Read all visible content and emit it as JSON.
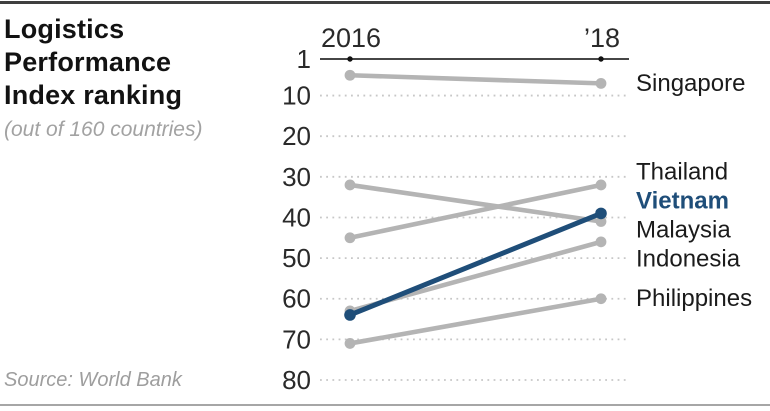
{
  "header": {
    "title_lines": [
      "Logistics",
      "Performance",
      "Index ranking"
    ],
    "subtitle": "(out of 160 countries)"
  },
  "footer": {
    "source": "Source: World Bank"
  },
  "chart_data": {
    "type": "line",
    "subtype": "slope-chart",
    "title": "Logistics Performance Index ranking",
    "subtitle": "(out of 160 countries)",
    "source": "Source: World Bank",
    "x_categories": [
      "2016",
      "’18"
    ],
    "ylabel": "rank (out of 160 countries)",
    "yticks": [
      1,
      10,
      20,
      30,
      40,
      50,
      60,
      70,
      80
    ],
    "ylim": [
      1,
      80
    ],
    "y_inverted": true,
    "grid": "dotted-horizontal",
    "legend_position": "right-inline-labels",
    "series": [
      {
        "name": "Singapore",
        "values": [
          5,
          7
        ],
        "highlight": false
      },
      {
        "name": "Thailand",
        "values": [
          45,
          32
        ],
        "highlight": false
      },
      {
        "name": "Vietnam",
        "values": [
          64,
          39
        ],
        "highlight": true
      },
      {
        "name": "Malaysia",
        "values": [
          32,
          41
        ],
        "highlight": false
      },
      {
        "name": "Indonesia",
        "values": [
          63,
          46
        ],
        "highlight": false
      },
      {
        "name": "Philippines",
        "values": [
          71,
          60
        ],
        "highlight": false
      }
    ]
  },
  "colors": {
    "highlight": "#1f4e79",
    "series": "#b4b4b4",
    "axis": "#2c2c2c",
    "axis_dot": "#111111",
    "grid": "#c7c7c7",
    "tick_text": "#2a2a2a",
    "label_text": "#1b1b1b",
    "background": "#ffffff",
    "border_top": "#3f3f3f",
    "border_bottom": "#a6a6a6",
    "muted_text": "#9e9e9e"
  }
}
